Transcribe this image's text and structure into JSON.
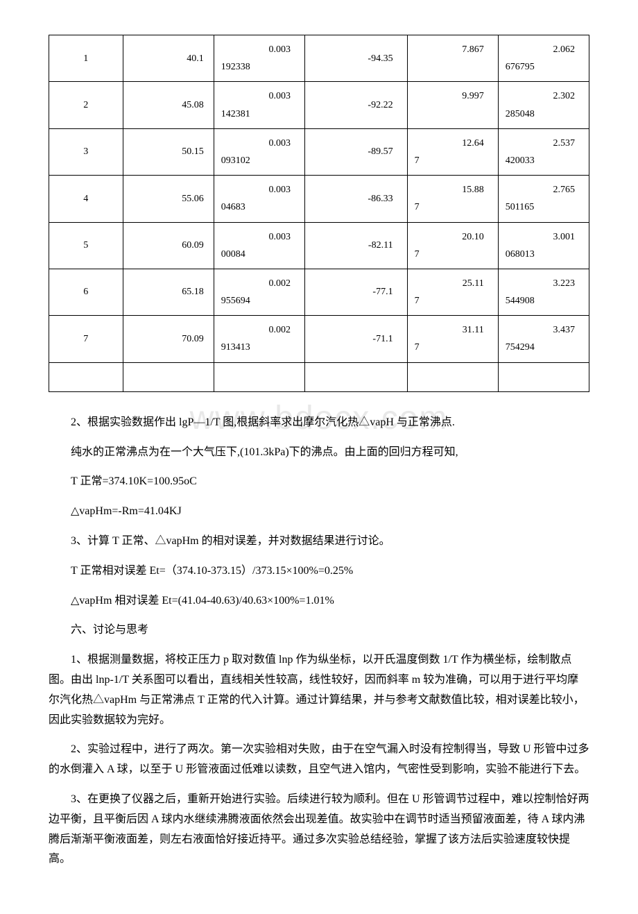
{
  "watermark": "www.bdocx.com",
  "table": {
    "rows": [
      {
        "n": "1",
        "c2": "40.1",
        "c3a": "0.003",
        "c3b": "192338",
        "c4": "-94.35",
        "c5a": "7.867",
        "c5b": "",
        "c6a": "2.062",
        "c6b": "676795"
      },
      {
        "n": "2",
        "c2": "45.08",
        "c3a": "0.003",
        "c3b": "142381",
        "c4": "-92.22",
        "c5a": "9.997",
        "c5b": "",
        "c6a": "2.302",
        "c6b": "285048"
      },
      {
        "n": "3",
        "c2": "50.15",
        "c3a": "0.003",
        "c3b": "093102",
        "c4": "-89.57",
        "c5a": "12.64",
        "c5b": "7",
        "c6a": "2.537",
        "c6b": "420033"
      },
      {
        "n": "4",
        "c2": "55.06",
        "c3a": "0.003",
        "c3b": "04683",
        "c4": "-86.33",
        "c5a": "15.88",
        "c5b": "7",
        "c6a": "2.765",
        "c6b": "501165"
      },
      {
        "n": "5",
        "c2": "60.09",
        "c3a": "0.003",
        "c3b": "00084",
        "c4": "-82.11",
        "c5a": "20.10",
        "c5b": "7",
        "c6a": "3.001",
        "c6b": "068013"
      },
      {
        "n": "6",
        "c2": "65.18",
        "c3a": "0.002",
        "c3b": "955694",
        "c4": "-77.1",
        "c5a": "25.11",
        "c5b": "7",
        "c6a": "3.223",
        "c6b": "544908"
      },
      {
        "n": "7",
        "c2": "70.09",
        "c3a": "0.002",
        "c3b": "913413",
        "c4": "-71.1",
        "c5a": "31.11",
        "c5b": "7",
        "c6a": "3.437",
        "c6b": "754294"
      }
    ]
  },
  "paragraphs": {
    "p1": "2、根据实验数据作出 lgP—1/T 图,根据斜率求出摩尔汽化热△vapH 与正常沸点.",
    "p2": "纯水的正常沸点为在一个大气压下,(101.3kPa)下的沸点。由上面的回归方程可知,",
    "p3": "T 正常=374.10K=100.95oC",
    "p4": "△vapHm=-Rm=41.04KJ",
    "p5": "3、计算 T 正常、△vapHm 的相对误差，并对数据结果进行讨论。",
    "p6": "T 正常相对误差 Et=（374.10-373.15）/373.15×100%=0.25%",
    "p7": "△vapHm 相对误差 Et=(41.04-40.63)/40.63×100%=1.01%",
    "p8": "六、讨论与思考",
    "p9": "1、根据测量数据，将校正压力 p 取对数值 lnp 作为纵坐标，以开氏温度倒数 1/T 作为横坐标，绘制散点图。由出 lnp-1/T 关系图可以看出，直线相关性较高，线性较好，因而斜率 m 较为准确，可以用于进行平均摩尔汽化热△vapHm 与正常沸点 T 正常的代入计算。通过计算结果，并与参考文献数值比较，相对误差比较小，因此实验数据较为完好。",
    "p10": "2、实验过程中，进行了两次。第一次实验相对失败，由于在空气漏入时没有控制得当，导致 U 形管中过多的水倒灌入 A 球，以至于 U 形管液面过低难以读数，且空气进入馆内，气密性受到影响，实验不能进行下去。",
    "p11": "3、在更换了仪器之后，重新开始进行实验。后续进行较为顺利。但在 U 形管调节过程中，难以控制恰好两边平衡，且平衡后因 A 球内水继续沸腾液面依然会出现差值。故实验中在调节时适当预留液面差，待 A 球内沸腾后渐渐平衡液面差，则左右液面恰好接近持平。通过多次实验总结经验，掌握了该方法后实验速度较快提高。"
  }
}
